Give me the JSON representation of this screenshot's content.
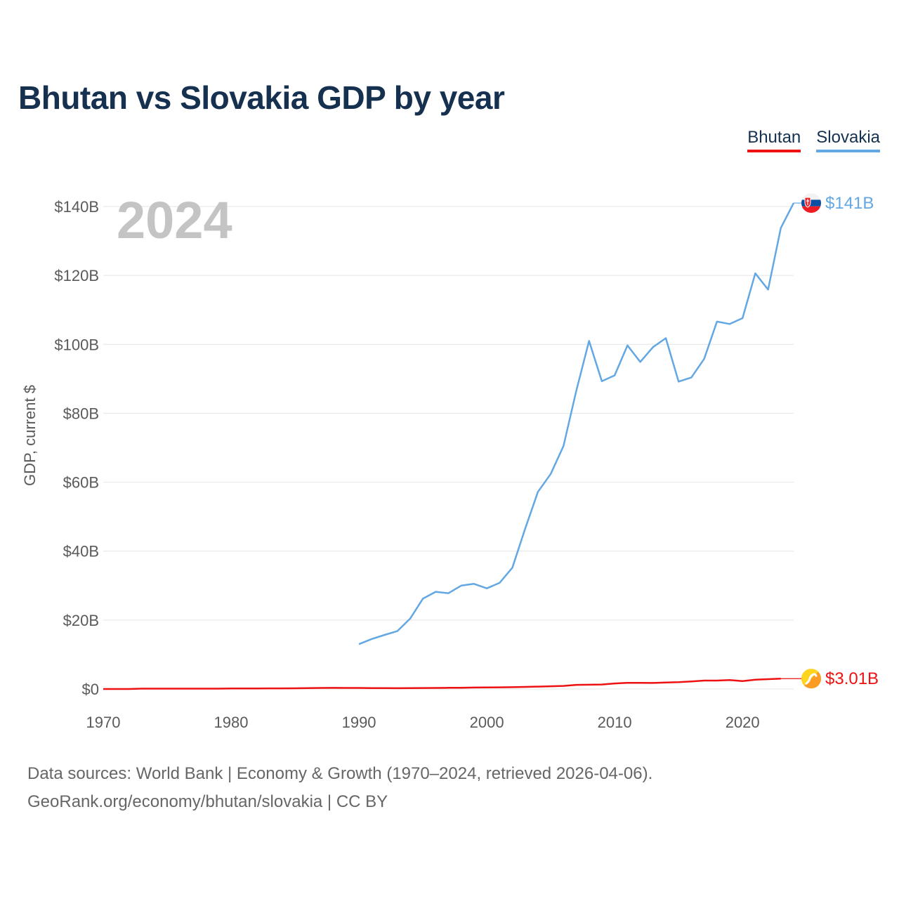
{
  "title": "Bhutan vs Slovakia GDP by year",
  "legend": [
    {
      "label": "Bhutan",
      "color": "#ee1111"
    },
    {
      "label": "Slovakia",
      "color": "#63a7e3"
    }
  ],
  "footer": {
    "line1": "Data sources: World Bank | Economy & Growth (1970–2024, retrieved 2026-04-06).",
    "line2": "GeoRank.org/economy/bhutan/slovakia | CC BY"
  },
  "chart_data": {
    "type": "line",
    "title": "Bhutan vs Slovakia GDP by year",
    "current_year": "2024",
    "xlabel": "",
    "ylabel": "GDP, current $",
    "xlim": [
      1970,
      2024
    ],
    "ylim": [
      0,
      140
    ],
    "value_unit": "billions USD",
    "x_ticks": [
      1970,
      1980,
      1990,
      2000,
      2010,
      2020
    ],
    "x_tick_labels": [
      "1970",
      "1980",
      "1990",
      "2000",
      "2010",
      "2020"
    ],
    "y_ticks": [
      0,
      20,
      40,
      60,
      80,
      100,
      120,
      140
    ],
    "y_tick_labels": [
      "$0",
      "$20B",
      "$40B",
      "$60B",
      "$80B",
      "$100B",
      "$120B",
      "$140B"
    ],
    "grid": true,
    "legend_position": "top-right",
    "series": [
      {
        "name": "Bhutan",
        "color": "#ee1111",
        "end_label": "$3.01B",
        "icon": "bhutan-flag-icon",
        "points": [
          [
            1970,
            0.0
          ],
          [
            1971,
            0.0
          ],
          [
            1972,
            0.0
          ],
          [
            1973,
            0.1
          ],
          [
            1974,
            0.1
          ],
          [
            1975,
            0.1
          ],
          [
            1976,
            0.1
          ],
          [
            1977,
            0.1
          ],
          [
            1978,
            0.1
          ],
          [
            1979,
            0.1
          ],
          [
            1980,
            0.14
          ],
          [
            1981,
            0.15
          ],
          [
            1982,
            0.16
          ],
          [
            1983,
            0.18
          ],
          [
            1984,
            0.19
          ],
          [
            1985,
            0.21
          ],
          [
            1986,
            0.25
          ],
          [
            1987,
            0.31
          ],
          [
            1988,
            0.32
          ],
          [
            1989,
            0.3
          ],
          [
            1990,
            0.3
          ],
          [
            1991,
            0.25
          ],
          [
            1992,
            0.24
          ],
          [
            1993,
            0.22
          ],
          [
            1994,
            0.25
          ],
          [
            1995,
            0.28
          ],
          [
            1996,
            0.3
          ],
          [
            1997,
            0.35
          ],
          [
            1998,
            0.37
          ],
          [
            1999,
            0.42
          ],
          [
            2000,
            0.44
          ],
          [
            2001,
            0.48
          ],
          [
            2002,
            0.53
          ],
          [
            2003,
            0.62
          ],
          [
            2004,
            0.7
          ],
          [
            2005,
            0.8
          ],
          [
            2006,
            0.9
          ],
          [
            2007,
            1.2
          ],
          [
            2008,
            1.25
          ],
          [
            2009,
            1.3
          ],
          [
            2010,
            1.6
          ],
          [
            2011,
            1.8
          ],
          [
            2012,
            1.8
          ],
          [
            2013,
            1.75
          ],
          [
            2014,
            1.9
          ],
          [
            2015,
            2.0
          ],
          [
            2016,
            2.2
          ],
          [
            2017,
            2.45
          ],
          [
            2018,
            2.45
          ],
          [
            2019,
            2.6
          ],
          [
            2020,
            2.3
          ],
          [
            2021,
            2.7
          ],
          [
            2022,
            2.85
          ],
          [
            2023,
            3.01
          ]
        ]
      },
      {
        "name": "Slovakia",
        "color": "#63a7e3",
        "end_label": "$141B",
        "icon": "slovakia-flag-icon",
        "points": [
          [
            1990,
            13.0
          ],
          [
            1991,
            14.5
          ],
          [
            1992,
            15.7
          ],
          [
            1993,
            16.8
          ],
          [
            1994,
            20.4
          ],
          [
            1995,
            26.2
          ],
          [
            1996,
            28.2
          ],
          [
            1997,
            27.8
          ],
          [
            1998,
            30.0
          ],
          [
            1999,
            30.5
          ],
          [
            2000,
            29.2
          ],
          [
            2001,
            30.8
          ],
          [
            2002,
            35.2
          ],
          [
            2003,
            46.5
          ],
          [
            2004,
            57.2
          ],
          [
            2005,
            62.4
          ],
          [
            2006,
            70.5
          ],
          [
            2007,
            86.5
          ],
          [
            2008,
            101.0
          ],
          [
            2009,
            89.3
          ],
          [
            2010,
            91.0
          ],
          [
            2011,
            99.7
          ],
          [
            2012,
            94.9
          ],
          [
            2013,
            99.2
          ],
          [
            2014,
            101.8
          ],
          [
            2015,
            89.2
          ],
          [
            2016,
            90.4
          ],
          [
            2017,
            95.8
          ],
          [
            2018,
            106.6
          ],
          [
            2019,
            105.9
          ],
          [
            2020,
            107.6
          ],
          [
            2021,
            120.6
          ],
          [
            2022,
            115.9
          ],
          [
            2023,
            133.8
          ],
          [
            2024,
            141.0
          ]
        ]
      }
    ]
  }
}
